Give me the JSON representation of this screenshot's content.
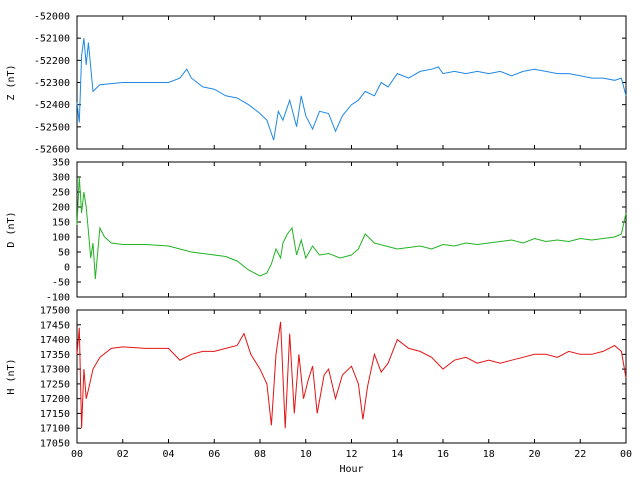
{
  "chart_data": [
    {
      "type": "line",
      "ylabel": "Z (nT)",
      "ylim": [
        -52600,
        -52000
      ],
      "yticks": [
        -52000,
        -52100,
        -52200,
        -52300,
        -52400,
        -52500,
        -52600
      ],
      "series": [
        {
          "color": "#1f88e5",
          "x": [
            0,
            0.1,
            0.2,
            0.3,
            0.4,
            0.5,
            0.7,
            1,
            2,
            3,
            4,
            4.5,
            4.8,
            5,
            5.5,
            6,
            6.5,
            7,
            7.5,
            8,
            8.3,
            8.6,
            8.8,
            9,
            9.3,
            9.6,
            9.8,
            10,
            10.3,
            10.6,
            11,
            11.3,
            11.6,
            12,
            12.3,
            12.6,
            13,
            13.3,
            13.6,
            14,
            14.5,
            15,
            15.5,
            15.8,
            16,
            16.5,
            17,
            17.5,
            18,
            18.5,
            19,
            19.5,
            20,
            20.5,
            21,
            21.5,
            22,
            22.5,
            23,
            23.5,
            23.8,
            24
          ],
          "values": [
            -52390,
            -52480,
            -52180,
            -52100,
            -52220,
            -52120,
            -52340,
            -52310,
            -52300,
            -52300,
            -52300,
            -52280,
            -52240,
            -52280,
            -52320,
            -52330,
            -52360,
            -52370,
            -52400,
            -52440,
            -52470,
            -52560,
            -52430,
            -52470,
            -52380,
            -52500,
            -52360,
            -52450,
            -52510,
            -52430,
            -52440,
            -52520,
            -52450,
            -52400,
            -52380,
            -52340,
            -52360,
            -52300,
            -52320,
            -52260,
            -52280,
            -52250,
            -52240,
            -52230,
            -52260,
            -52250,
            -52260,
            -52250,
            -52260,
            -52250,
            -52270,
            -52250,
            -52240,
            -52250,
            -52260,
            -52260,
            -52270,
            -52280,
            -52280,
            -52290,
            -52280,
            -52360
          ]
        }
      ]
    },
    {
      "type": "line",
      "ylabel": "D (nT)",
      "ylim": [
        -100,
        350
      ],
      "yticks": [
        350,
        300,
        250,
        200,
        150,
        100,
        50,
        0,
        -50,
        -100
      ],
      "series": [
        {
          "color": "#22b322",
          "x": [
            0,
            0.1,
            0.2,
            0.3,
            0.4,
            0.5,
            0.6,
            0.7,
            0.8,
            1,
            1.2,
            1.5,
            2,
            3,
            4,
            4.5,
            5,
            5.5,
            6,
            6.5,
            7,
            7.5,
            8,
            8.3,
            8.5,
            8.7,
            8.9,
            9,
            9.2,
            9.4,
            9.6,
            9.8,
            10,
            10.3,
            10.6,
            11,
            11.5,
            12,
            12.3,
            12.6,
            13,
            13.5,
            14,
            14.5,
            15,
            15.5,
            16,
            16.5,
            17,
            17.5,
            18,
            18.5,
            19,
            19.5,
            20,
            20.5,
            21,
            21.5,
            22,
            22.5,
            23,
            23.5,
            23.8,
            24
          ],
          "values": [
            140,
            300,
            180,
            250,
            200,
            120,
            30,
            80,
            -40,
            130,
            100,
            80,
            75,
            75,
            70,
            60,
            50,
            45,
            40,
            35,
            20,
            -10,
            -30,
            -20,
            10,
            60,
            30,
            80,
            110,
            130,
            40,
            90,
            30,
            70,
            40,
            45,
            30,
            40,
            60,
            110,
            80,
            70,
            60,
            65,
            70,
            60,
            75,
            70,
            80,
            75,
            80,
            85,
            90,
            80,
            95,
            85,
            90,
            85,
            95,
            90,
            95,
            100,
            110,
            180
          ]
        }
      ]
    },
    {
      "type": "line",
      "ylabel": "H (nT)",
      "xlabel": "Hour",
      "ylim": [
        17050,
        17500
      ],
      "yticks": [
        17500,
        17450,
        17400,
        17350,
        17300,
        17250,
        17200,
        17150,
        17100,
        17050
      ],
      "xlim": [
        0,
        24
      ],
      "xticks": [
        "00",
        "02",
        "04",
        "06",
        "08",
        "10",
        "12",
        "14",
        "16",
        "18",
        "20",
        "22",
        "00"
      ],
      "series": [
        {
          "color": "#e31414",
          "x": [
            0,
            0.1,
            0.2,
            0.3,
            0.4,
            0.5,
            0.7,
            1,
            1.5,
            2,
            3,
            4,
            4.5,
            5,
            5.5,
            6,
            6.5,
            7,
            7.3,
            7.6,
            8,
            8.3,
            8.5,
            8.7,
            8.9,
            9.1,
            9.3,
            9.5,
            9.7,
            9.9,
            10.1,
            10.3,
            10.5,
            10.8,
            11,
            11.3,
            11.6,
            12,
            12.3,
            12.5,
            12.7,
            13,
            13.3,
            13.6,
            14,
            14.5,
            15,
            15.5,
            16,
            16.5,
            17,
            17.5,
            18,
            18.5,
            19,
            19.5,
            20,
            20.5,
            21,
            21.5,
            22,
            22.5,
            23,
            23.5,
            23.8,
            24
          ],
          "values": [
            17350,
            17440,
            17100,
            17300,
            17200,
            17230,
            17300,
            17340,
            17370,
            17375,
            17370,
            17370,
            17330,
            17350,
            17360,
            17360,
            17370,
            17380,
            17420,
            17350,
            17300,
            17250,
            17110,
            17350,
            17460,
            17100,
            17420,
            17150,
            17350,
            17200,
            17260,
            17310,
            17150,
            17280,
            17300,
            17200,
            17280,
            17310,
            17250,
            17130,
            17240,
            17350,
            17290,
            17320,
            17400,
            17370,
            17360,
            17340,
            17300,
            17330,
            17340,
            17320,
            17330,
            17320,
            17330,
            17340,
            17350,
            17350,
            17340,
            17360,
            17350,
            17350,
            17360,
            17380,
            17360,
            17270
          ]
        }
      ]
    }
  ]
}
